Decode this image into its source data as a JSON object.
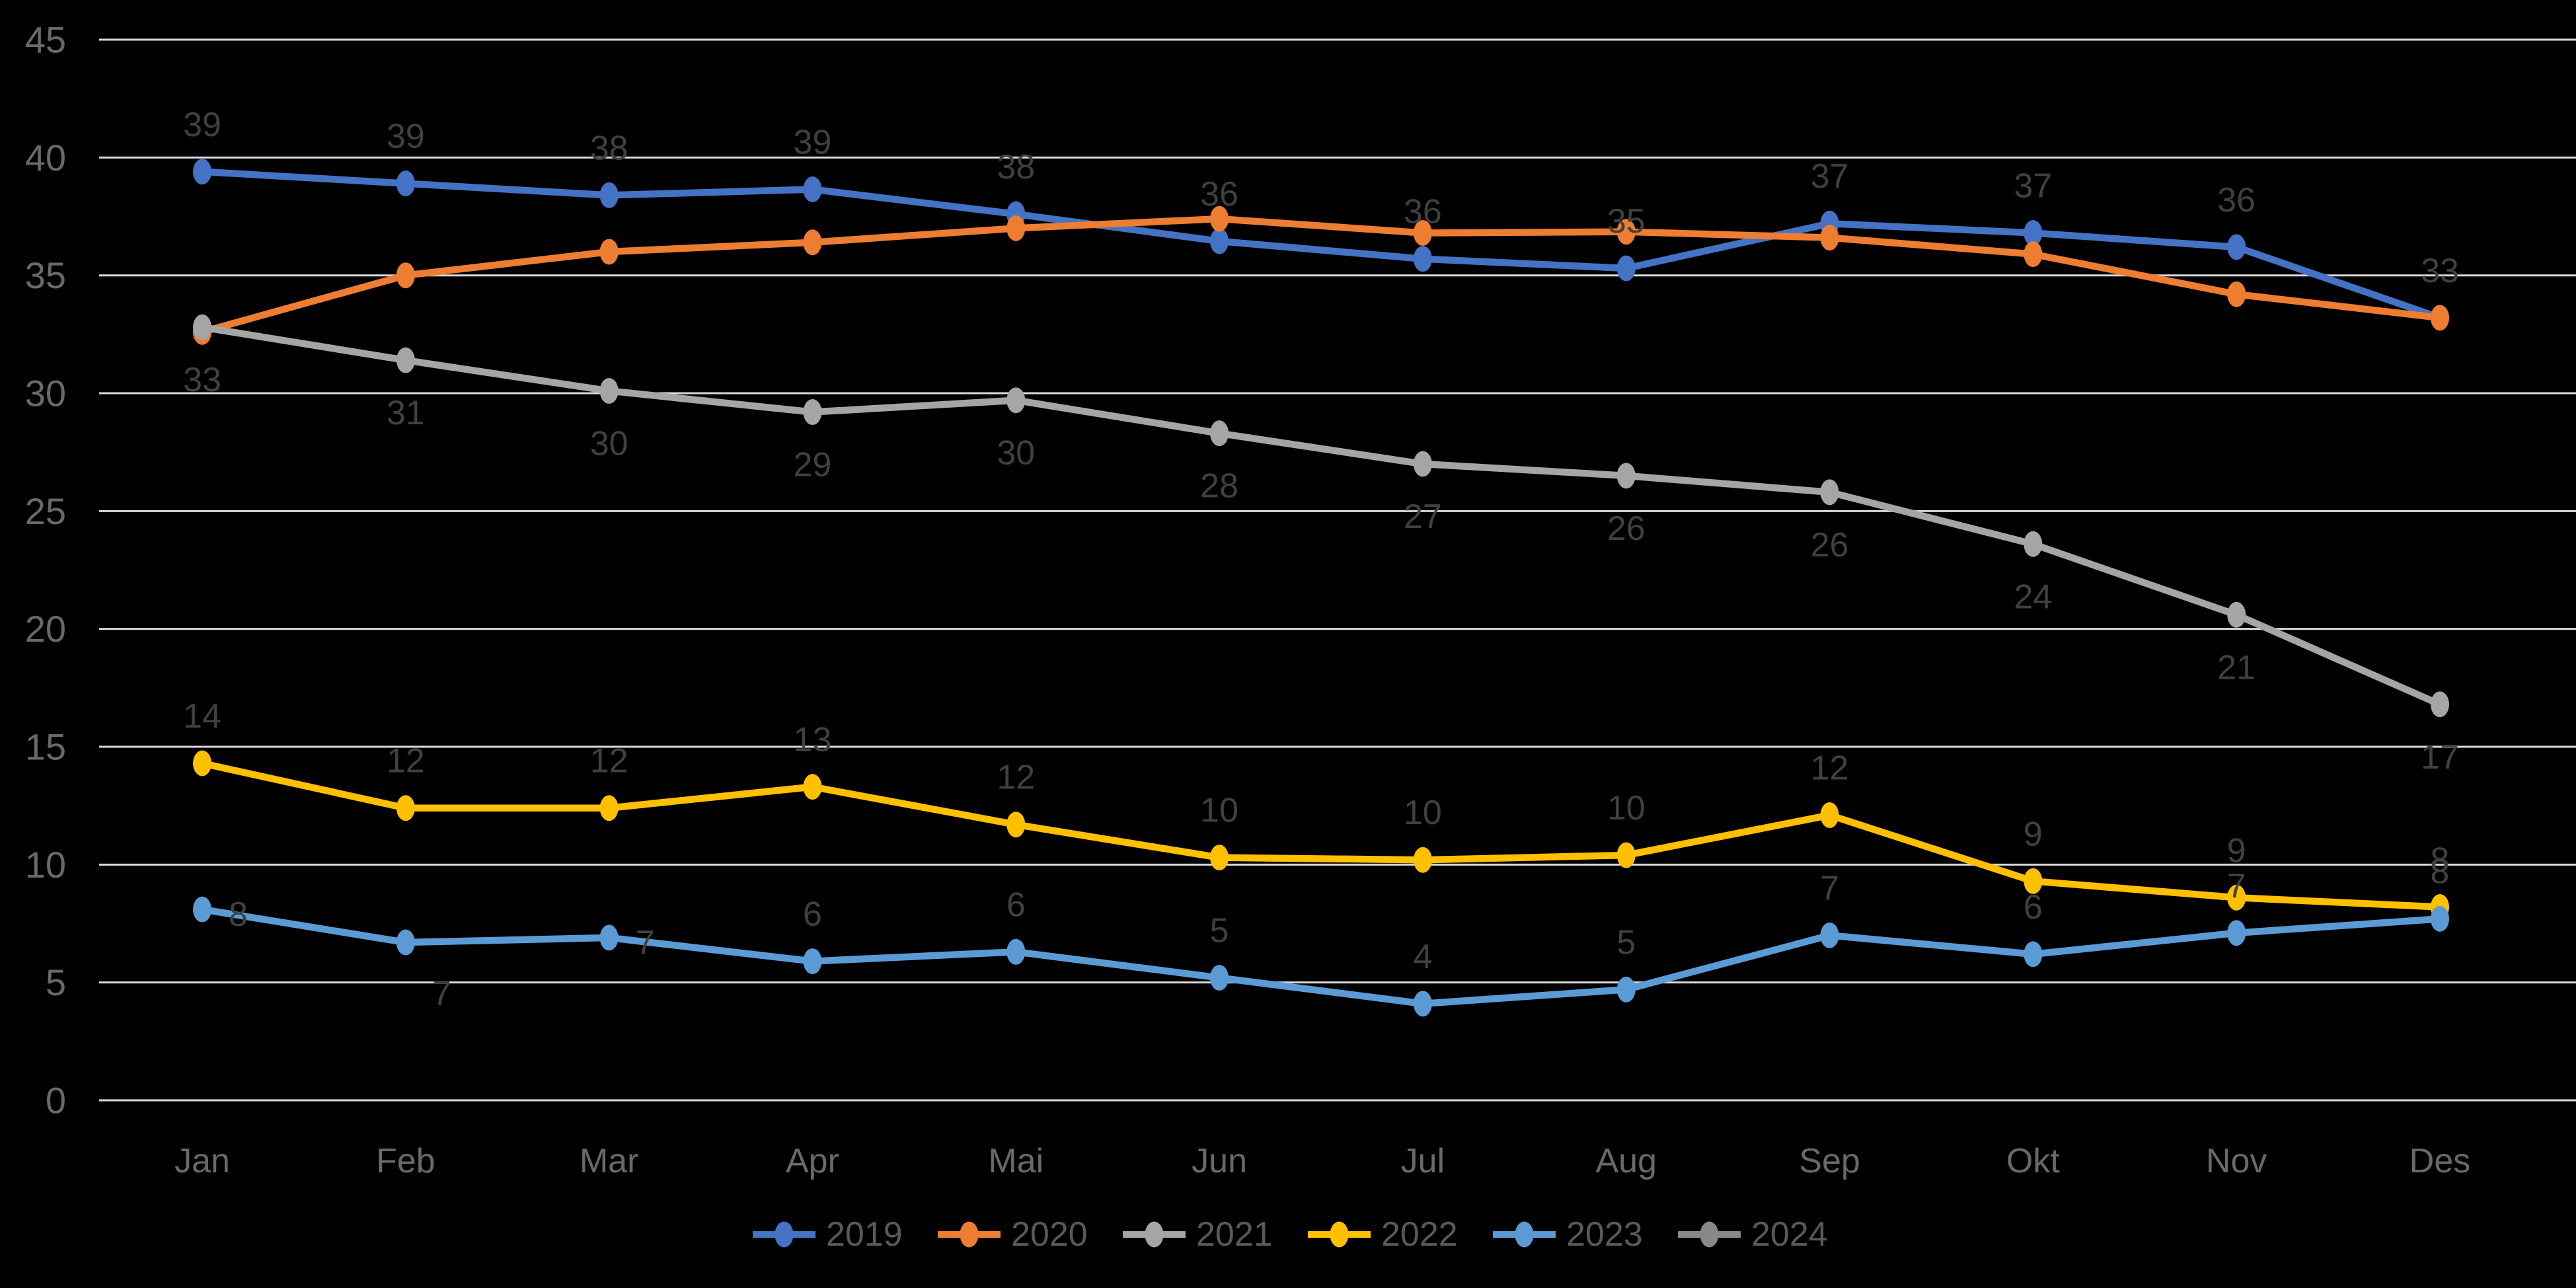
{
  "chart_data": {
    "type": "line",
    "title": "",
    "categories": [
      "Jan",
      "Feb",
      "Mar",
      "Apr",
      "Mai",
      "Jun",
      "Jul",
      "Aug",
      "Sep",
      "Okt",
      "Nov",
      "Des"
    ],
    "y_axis": {
      "min": 0,
      "max": 45,
      "step": 5,
      "tick_labels": [
        "45",
        "40",
        "35",
        "30",
        "25",
        "20",
        "15",
        "10",
        "5",
        "0"
      ]
    },
    "grid": true,
    "legend_position": "bottom-center",
    "colors": {
      "background": "#000000",
      "gridline": "#D9D9D9",
      "axis_text": "#696969",
      "data_label_text": "#404040",
      "legend_text": "#595959"
    },
    "series": [
      {
        "name": "2019",
        "color": "#4472C4",
        "values": [
          39,
          39,
          38,
          39,
          38,
          36,
          36,
          35,
          37,
          37,
          36,
          33
        ],
        "plot": [
          39.4,
          38.9,
          38.4,
          38.65,
          37.6,
          36.45,
          35.7,
          35.3,
          37.2,
          36.8,
          36.2,
          33.2
        ],
        "labels": [
          "39",
          "39",
          "38",
          "39",
          "38",
          "36",
          "36",
          "35",
          "37",
          "37",
          "36",
          "33"
        ],
        "label_placement": "above"
      },
      {
        "name": "2020",
        "color": "#ED7D31",
        "values": [
          33,
          35,
          36,
          36,
          37,
          37,
          37,
          37,
          37,
          36,
          34,
          33
        ],
        "plot": [
          32.6,
          35.0,
          36.0,
          36.4,
          37.0,
          37.4,
          36.8,
          36.85,
          36.6,
          35.9,
          34.2,
          33.2
        ],
        "labels": [],
        "label_placement": "none"
      },
      {
        "name": "2021",
        "color": "#A5A5A5",
        "values": [
          33,
          31,
          30,
          29,
          30,
          28,
          27,
          26,
          26,
          24,
          21,
          17
        ],
        "plot": [
          32.8,
          31.4,
          30.1,
          29.2,
          29.7,
          28.3,
          27.0,
          26.5,
          25.8,
          23.6,
          20.6,
          16.8
        ],
        "labels": [
          "33",
          "31",
          "30",
          "29",
          "30",
          "28",
          "27",
          "26",
          "26",
          "24",
          "21",
          "17"
        ],
        "label_placement": "below"
      },
      {
        "name": "2022",
        "color": "#FFC000",
        "values": [
          14,
          12,
          12,
          13,
          12,
          10,
          10,
          10,
          12,
          9,
          9,
          8
        ],
        "plot": [
          14.3,
          12.4,
          12.4,
          13.3,
          11.7,
          10.3,
          10.2,
          10.4,
          12.1,
          9.3,
          8.6,
          8.2
        ],
        "labels": [
          "14",
          "12",
          "12",
          "13",
          "12",
          "10",
          "10",
          "10",
          "12",
          "9",
          "9",
          "8"
        ],
        "label_placement": "above"
      },
      {
        "name": "2023",
        "color": "#5B9BD5",
        "values": [
          8,
          7,
          7,
          6,
          6,
          5,
          4,
          5,
          7,
          6,
          7,
          8
        ],
        "plot": [
          8.1,
          6.7,
          6.9,
          5.9,
          6.3,
          5.2,
          4.1,
          4.7,
          7.0,
          6.2,
          7.1,
          7.7
        ],
        "labels": [
          "8",
          "7",
          "7",
          "6",
          "6",
          "5",
          "4",
          "5",
          "7",
          "6",
          "7",
          "8"
        ],
        "label_placement": "custom",
        "label_placements": [
          "right",
          "below-right",
          "right"
        ]
      }
    ],
    "legend_items": [
      "2019",
      "2020",
      "2021",
      "2022",
      "2023",
      "2024"
    ]
  }
}
